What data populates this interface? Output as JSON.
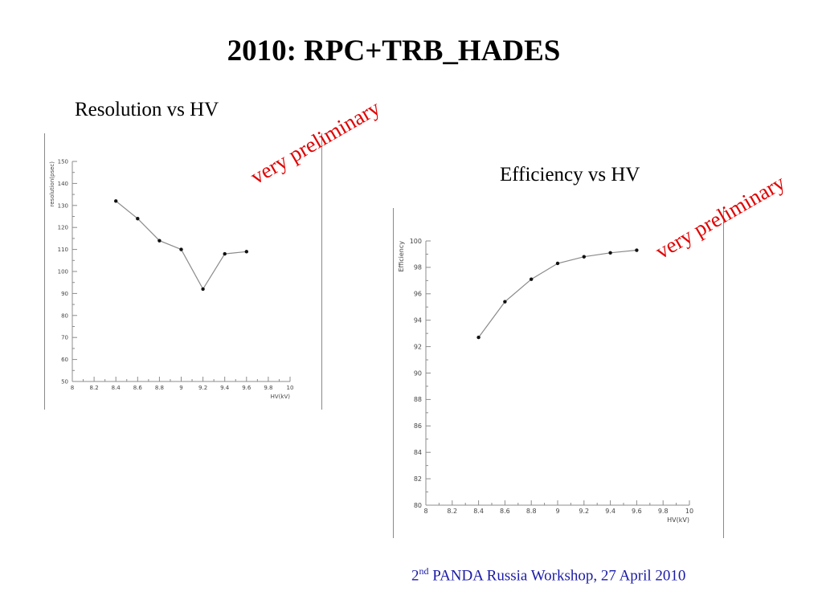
{
  "title": "2010: RPC+TRB_HADES",
  "charts": {
    "resolution_title": "Resolution vs HV",
    "efficiency_title": "Efficiency vs HV"
  },
  "watermark": {
    "text": "very preliminary",
    "color": "#e00000"
  },
  "footer": {
    "ordinal": "2",
    "ordinal_suffix": "nd",
    "text": "PANDA Russia Workshop, 27 April 2010",
    "color": "#1a1aa8"
  },
  "chart_data": [
    {
      "type": "line",
      "title": "Resolution vs HV",
      "xlabel": "HV(kV)",
      "ylabel": "resolution(psec)",
      "xlim": [
        8,
        10
      ],
      "ylim": [
        50,
        150
      ],
      "xticks": [
        "8",
        "8.2",
        "8.4",
        "8.6",
        "8.8",
        "9",
        "9.2",
        "9.4",
        "9.6",
        "9.8",
        "10"
      ],
      "yticks": [
        "50",
        "60",
        "70",
        "80",
        "90",
        "100",
        "110",
        "120",
        "130",
        "140",
        "150"
      ],
      "x": [
        8.4,
        8.6,
        8.8,
        9.0,
        9.2,
        9.4,
        9.6
      ],
      "y": [
        132,
        124,
        114,
        110,
        92,
        108,
        109
      ]
    },
    {
      "type": "line",
      "title": "Efficiency vs HV",
      "xlabel": "HV(kV)",
      "ylabel": "Efficiency",
      "xlim": [
        8,
        10
      ],
      "ylim": [
        80,
        100
      ],
      "xticks": [
        "8",
        "8.2",
        "8.4",
        "8.6",
        "8.8",
        "9",
        "9.2",
        "9.4",
        "9.6",
        "9.8",
        "10"
      ],
      "yticks": [
        "80",
        "82",
        "84",
        "86",
        "88",
        "90",
        "92",
        "94",
        "96",
        "98",
        "100"
      ],
      "x": [
        8.4,
        8.6,
        8.8,
        9.0,
        9.2,
        9.4,
        9.6
      ],
      "y": [
        92.7,
        95.4,
        97.1,
        98.3,
        98.8,
        99.1,
        99.3
      ]
    }
  ]
}
